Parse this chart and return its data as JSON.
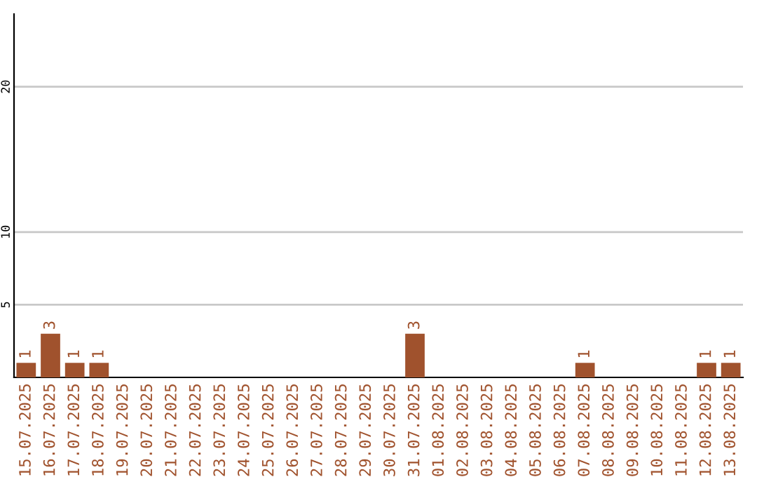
{
  "chart_data": {
    "type": "bar",
    "categories": [
      "15.07.2025",
      "16.07.2025",
      "17.07.2025",
      "18.07.2025",
      "19.07.2025",
      "20.07.2025",
      "21.07.2025",
      "22.07.2025",
      "23.07.2025",
      "24.07.2025",
      "25.07.2025",
      "26.07.2025",
      "27.07.2025",
      "28.07.2025",
      "29.07.2025",
      "30.07.2025",
      "31.07.2025",
      "01.08.2025",
      "02.08.2025",
      "03.08.2025",
      "04.08.2025",
      "05.08.2025",
      "06.08.2025",
      "07.08.2025",
      "08.08.2025",
      "09.08.2025",
      "10.08.2025",
      "11.08.2025",
      "12.08.2025",
      "13.08.2025"
    ],
    "values": [
      1,
      3,
      1,
      1,
      0,
      0,
      0,
      0,
      0,
      0,
      0,
      0,
      0,
      0,
      0,
      0,
      3,
      0,
      0,
      0,
      0,
      0,
      0,
      1,
      0,
      0,
      0,
      0,
      1,
      1
    ],
    "value_labels": [
      "1",
      "3",
      "1",
      "1",
      null,
      null,
      null,
      null,
      null,
      null,
      null,
      null,
      null,
      null,
      null,
      null,
      "3",
      null,
      null,
      null,
      null,
      null,
      null,
      "1",
      null,
      null,
      null,
      null,
      "1",
      "1"
    ],
    "color": "#a0522d",
    "ylim": [
      0,
      25
    ],
    "yticks": [
      5,
      10,
      20
    ],
    "grid": "y"
  }
}
